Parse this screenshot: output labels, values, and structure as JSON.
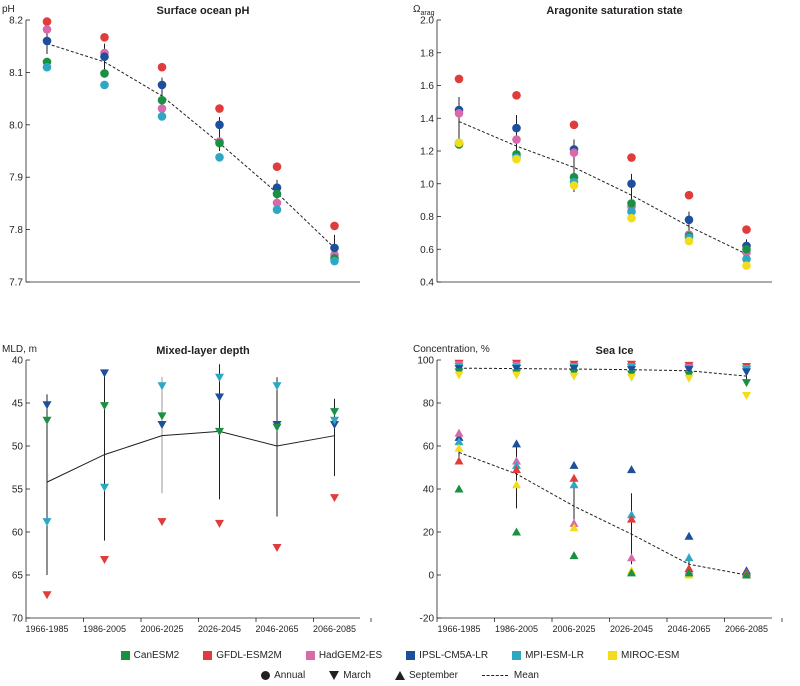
{
  "colors": {
    "CanESM2": "#1a9142",
    "GFDL-ESM2M": "#e03c3c",
    "HadGEM2-ES": "#d86aab",
    "IPSL-CM5A-LR": "#1d4f9c",
    "MPI-ESM-LR": "#2ea7c4",
    "MIROC-ESM": "#f2dc1c",
    "mean": "#231f20"
  },
  "legend": {
    "models": [
      {
        "name": "CanESM2",
        "color_key": "CanESM2"
      },
      {
        "name": "GFDL-ESM2M",
        "color_key": "GFDL-ESM2M"
      },
      {
        "name": "HadGEM2-ES",
        "color_key": "HadGEM2-ES"
      },
      {
        "name": "IPSL-CM5A-LR",
        "color_key": "IPSL-CM5A-LR"
      },
      {
        "name": "MPI-ESM-LR",
        "color_key": "MPI-ESM-LR"
      },
      {
        "name": "MIROC-ESM",
        "color_key": "MIROC-ESM"
      }
    ],
    "annual": "Annual",
    "march": "March",
    "september": "September",
    "mean": "Mean"
  },
  "chart_data": [
    {
      "type": "scatter",
      "title": "Surface ocean pH",
      "ylabel": "pH",
      "ylim": [
        7.7,
        8.2
      ],
      "yticks": [
        7.7,
        7.8,
        7.9,
        8.0,
        8.1,
        8.2
      ],
      "ytick_labels": [
        "7.7",
        "7.8",
        "7.9",
        "8.0",
        "8.1",
        "8.2"
      ],
      "categories": [],
      "show_xticks": false,
      "mean": [
        8.155,
        8.12,
        8.055,
        7.965,
        7.87,
        7.765
      ],
      "errorbars": [
        {
          "x": 0,
          "low": 8.135,
          "high": 8.175
        },
        {
          "x": 1,
          "low": 8.1,
          "high": 8.155
        },
        {
          "x": 2,
          "low": 8.035,
          "high": 8.09
        },
        {
          "x": 3,
          "low": 7.95,
          "high": 8.015
        },
        {
          "x": 4,
          "low": 7.85,
          "high": 7.895
        },
        {
          "x": 5,
          "low": 7.755,
          "high": 7.79
        }
      ],
      "series": [
        {
          "name": "GFDL-ESM2M",
          "marker": "circle",
          "values": [
            8.197,
            8.167,
            8.11,
            8.031,
            7.92,
            7.807
          ]
        },
        {
          "name": "HadGEM2-ES",
          "marker": "circle",
          "values": [
            8.182,
            8.137,
            8.031,
            7.968,
            7.851,
            7.752
          ]
        },
        {
          "name": "IPSL-CM5A-LR",
          "marker": "circle",
          "values": [
            8.16,
            8.13,
            8.076,
            8.0,
            7.88,
            7.765
          ]
        },
        {
          "name": "CanESM2",
          "marker": "circle",
          "values": [
            8.12,
            8.098,
            8.047,
            7.965,
            7.868,
            7.745
          ]
        },
        {
          "name": "MPI-ESM-LR",
          "marker": "circle",
          "values": [
            8.11,
            8.076,
            8.016,
            7.938,
            7.838,
            7.74
          ]
        }
      ]
    },
    {
      "type": "scatter",
      "title": "Aragonite saturation state",
      "ylabel": "Ω",
      "ylabel_sub": "arag",
      "ylim": [
        0.4,
        2.0
      ],
      "yticks": [
        0.4,
        0.6,
        0.8,
        1.0,
        1.2,
        1.4,
        1.6,
        1.8,
        2.0
      ],
      "ytick_labels": [
        "0.4",
        "0.6",
        "0.8",
        "1.0",
        "1.2",
        "1.4",
        "1.6",
        "1.8",
        "2.0"
      ],
      "categories": [],
      "show_xticks": false,
      "mean": [
        1.38,
        1.23,
        1.1,
        0.93,
        0.74,
        0.57
      ],
      "errorbars": [
        {
          "x": 0,
          "low": 1.22,
          "high": 1.53
        },
        {
          "x": 1,
          "low": 1.15,
          "high": 1.42
        },
        {
          "x": 2,
          "low": 0.95,
          "high": 1.27
        },
        {
          "x": 3,
          "low": 0.8,
          "high": 1.06
        },
        {
          "x": 4,
          "low": 0.64,
          "high": 0.83
        },
        {
          "x": 5,
          "low": 0.5,
          "high": 0.66
        }
      ],
      "series": [
        {
          "name": "GFDL-ESM2M",
          "marker": "circle",
          "values": [
            1.64,
            1.54,
            1.36,
            1.16,
            0.93,
            0.72
          ]
        },
        {
          "name": "IPSL-CM5A-LR",
          "marker": "circle",
          "values": [
            1.45,
            1.34,
            1.21,
            1.0,
            0.78,
            0.62
          ]
        },
        {
          "name": "HadGEM2-ES",
          "marker": "circle",
          "values": [
            1.43,
            1.27,
            1.19,
            0.86,
            0.69,
            0.58
          ]
        },
        {
          "name": "CanESM2",
          "marker": "circle",
          "values": [
            1.24,
            1.18,
            1.04,
            0.88,
            0.68,
            0.6
          ]
        },
        {
          "name": "MPI-ESM-LR",
          "marker": "circle",
          "values": [
            1.25,
            1.16,
            1.01,
            0.83,
            0.67,
            0.54
          ]
        },
        {
          "name": "MIROC-ESM",
          "marker": "circle",
          "values": [
            1.25,
            1.15,
            0.99,
            0.79,
            0.65,
            0.5
          ]
        }
      ]
    },
    {
      "type": "scatter",
      "title": "Mixed-layer depth",
      "ylabel": "MLD, m",
      "ylim": [
        70,
        40
      ],
      "yticks": [
        40,
        45,
        50,
        55,
        60,
        65,
        70
      ],
      "ytick_labels": [
        "40",
        "45",
        "50",
        "55",
        "60",
        "65",
        "70"
      ],
      "categories": [
        "1966-1985",
        "1986-2005",
        "2006-2025",
        "2026-2045",
        "2046-2065",
        "2066-2085"
      ],
      "show_xticks": true,
      "mean": [
        54.2,
        51.0,
        48.8,
        48.3,
        50.0,
        48.8
      ],
      "errorbars": [
        {
          "x": 0,
          "low": 44.0,
          "high": 65.0,
          "color": "#231f20"
        },
        {
          "x": 1,
          "low": 41.5,
          "high": 61.0,
          "color": "#231f20"
        },
        {
          "x": 2,
          "low": 42.0,
          "high": 55.5,
          "color": "#9a9a9a"
        },
        {
          "x": 3,
          "low": 40.5,
          "high": 56.2,
          "color": "#231f20"
        },
        {
          "x": 4,
          "low": 42.0,
          "high": 58.2,
          "color": "#231f20"
        },
        {
          "x": 5,
          "low": 44.5,
          "high": 53.5,
          "color": "#231f20"
        }
      ],
      "series": [
        {
          "name": "IPSL-CM5A-LR",
          "marker": "down",
          "values": [
            45.2,
            41.5,
            47.5,
            44.3,
            47.5,
            47.5
          ]
        },
        {
          "name": "CanESM2",
          "marker": "down",
          "values": [
            47.0,
            45.3,
            46.5,
            48.3,
            47.8,
            46.0
          ]
        },
        {
          "name": "MPI-ESM-LR",
          "marker": "down",
          "values": [
            58.8,
            54.8,
            43.0,
            42.0,
            43.0,
            47.0
          ]
        },
        {
          "name": "GFDL-ESM2M",
          "marker": "down",
          "values": [
            67.3,
            63.2,
            58.8,
            59.0,
            61.8,
            56.0
          ]
        }
      ]
    },
    {
      "type": "scatter",
      "title": "Sea Ice",
      "ylabel": "Concentration, %",
      "ylim": [
        -20,
        100
      ],
      "yticks": [
        -20,
        0,
        20,
        40,
        60,
        80,
        100
      ],
      "ytick_labels": [
        "-20",
        "0",
        "20",
        "40",
        "60",
        "80",
        "100"
      ],
      "categories": [
        "1966-1985",
        "1986-2005",
        "2006-2025",
        "2026-2045",
        "2046-2065",
        "2066-2085"
      ],
      "show_xticks": true,
      "mean_lines": [
        {
          "name": "March",
          "values": [
            96.2,
            96.0,
            95.8,
            95.5,
            95.0,
            92.5
          ]
        },
        {
          "name": "September",
          "values": [
            57.0,
            47.0,
            32.0,
            19.0,
            5.0,
            0.0
          ]
        }
      ],
      "errorbars": [
        {
          "x": 0,
          "low": 95.0,
          "high": 98.0
        },
        {
          "x": 1,
          "low": 95.0,
          "high": 97.5
        },
        {
          "x": 2,
          "low": 94.5,
          "high": 97.0
        },
        {
          "x": 3,
          "low": 94.0,
          "high": 97.0
        },
        {
          "x": 4,
          "low": 93.5,
          "high": 96.5
        },
        {
          "x": 5,
          "low": 90.0,
          "high": 95.5
        },
        {
          "x": 0,
          "low": 52.0,
          "high": 63.0
        },
        {
          "x": 1,
          "low": 31.0,
          "high": 60.0
        },
        {
          "x": 2,
          "low": 22.0,
          "high": 44.0
        },
        {
          "x": 3,
          "low": 5.0,
          "high": 38.0
        },
        {
          "x": 4,
          "low": 0.0,
          "high": 10.0
        },
        {
          "x": 5,
          "low": 0.0,
          "high": 2.0
        }
      ],
      "series": [
        {
          "name": "GFDL-ESM2M",
          "marker": "down",
          "values": [
            98.5,
            98.5,
            98.0,
            98.0,
            97.5,
            97.0
          ]
        },
        {
          "name": "HadGEM2-ES",
          "marker": "down",
          "values": [
            97.8,
            97.5,
            97.0,
            97.0,
            96.5,
            96.0
          ]
        },
        {
          "name": "MPI-ESM-LR",
          "marker": "down",
          "values": [
            97.0,
            96.5,
            96.5,
            96.5,
            96.0,
            95.5
          ]
        },
        {
          "name": "IPSL-CM5A-LR",
          "marker": "down",
          "values": [
            96.0,
            96.0,
            96.0,
            95.5,
            95.5,
            94.5
          ]
        },
        {
          "name": "CanESM2",
          "marker": "down",
          "values": [
            94.5,
            94.0,
            94.0,
            93.5,
            93.0,
            89.5
          ]
        },
        {
          "name": "MIROC-ESM",
          "marker": "down",
          "values": [
            93.0,
            93.0,
            92.5,
            92.0,
            91.5,
            83.5
          ]
        },
        {
          "name": "IPSL-CM5A-LR",
          "marker": "up",
          "values": [
            64.0,
            61.0,
            51.0,
            49.0,
            18.0,
            2.0
          ]
        },
        {
          "name": "HadGEM2-ES",
          "marker": "up",
          "values": [
            66.0,
            53.0,
            24.0,
            8.0,
            2.0,
            1.0
          ]
        },
        {
          "name": "MPI-ESM-LR",
          "marker": "up",
          "values": [
            62.0,
            51.0,
            42.0,
            28.0,
            8.0,
            1.0
          ]
        },
        {
          "name": "GFDL-ESM2M",
          "marker": "up",
          "values": [
            53.0,
            49.0,
            45.0,
            26.0,
            3.0,
            1.0
          ]
        },
        {
          "name": "MIROC-ESM",
          "marker": "up",
          "values": [
            59.0,
            42.0,
            22.0,
            2.0,
            0.0,
            0.0
          ]
        },
        {
          "name": "CanESM2",
          "marker": "up",
          "values": [
            40.0,
            20.0,
            9.0,
            1.0,
            1.0,
            0.0
          ]
        }
      ]
    }
  ]
}
